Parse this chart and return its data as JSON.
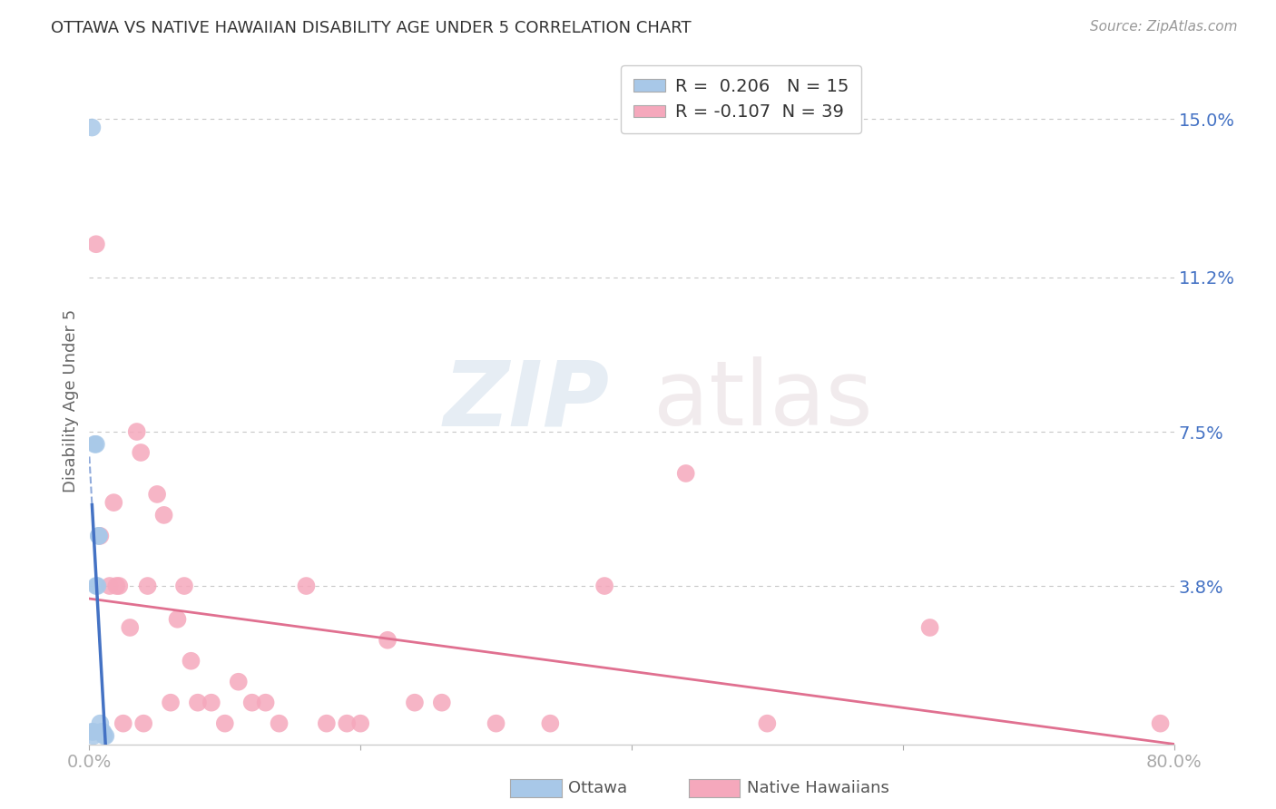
{
  "title": "OTTAWA VS NATIVE HAWAIIAN DISABILITY AGE UNDER 5 CORRELATION CHART",
  "source": "Source: ZipAtlas.com",
  "ylabel": "Disability Age Under 5",
  "xlim": [
    0.0,
    0.8
  ],
  "ylim": [
    0.0,
    0.165
  ],
  "yticks": [
    0.038,
    0.075,
    0.112,
    0.15
  ],
  "ytick_labels": [
    "3.8%",
    "7.5%",
    "11.2%",
    "15.0%"
  ],
  "xticks": [
    0.0,
    0.2,
    0.4,
    0.6,
    0.8
  ],
  "xtick_labels": [
    "0.0%",
    "",
    "",
    "",
    "80.0%"
  ],
  "ottawa_x": [
    0.002,
    0.002,
    0.003,
    0.003,
    0.004,
    0.005,
    0.005,
    0.006,
    0.007,
    0.007,
    0.008,
    0.009,
    0.01,
    0.011,
    0.012
  ],
  "ottawa_y": [
    0.148,
    0.003,
    0.003,
    0.002,
    0.072,
    0.072,
    0.038,
    0.038,
    0.05,
    0.05,
    0.005,
    0.003,
    0.003,
    0.002,
    0.002
  ],
  "native_x": [
    0.005,
    0.008,
    0.015,
    0.018,
    0.02,
    0.022,
    0.025,
    0.03,
    0.035,
    0.038,
    0.04,
    0.043,
    0.05,
    0.055,
    0.06,
    0.065,
    0.07,
    0.075,
    0.08,
    0.09,
    0.1,
    0.11,
    0.12,
    0.13,
    0.14,
    0.16,
    0.175,
    0.19,
    0.2,
    0.22,
    0.24,
    0.26,
    0.3,
    0.34,
    0.38,
    0.44,
    0.5,
    0.62,
    0.79
  ],
  "native_y": [
    0.12,
    0.05,
    0.038,
    0.058,
    0.038,
    0.038,
    0.005,
    0.028,
    0.075,
    0.07,
    0.005,
    0.038,
    0.06,
    0.055,
    0.01,
    0.03,
    0.038,
    0.02,
    0.01,
    0.01,
    0.005,
    0.015,
    0.01,
    0.01,
    0.005,
    0.038,
    0.005,
    0.005,
    0.005,
    0.025,
    0.01,
    0.01,
    0.005,
    0.005,
    0.038,
    0.065,
    0.005,
    0.028,
    0.005
  ],
  "ottawa_R": 0.206,
  "ottawa_N": 15,
  "native_R": -0.107,
  "native_N": 39,
  "ottawa_color": "#a8c8e8",
  "native_color": "#f5a8bc",
  "ottawa_line_color": "#4472c4",
  "native_line_color": "#e07090",
  "watermark_zip": "ZIP",
  "watermark_atlas": "atlas",
  "background_color": "#ffffff",
  "grid_color": "#c8c8c8"
}
